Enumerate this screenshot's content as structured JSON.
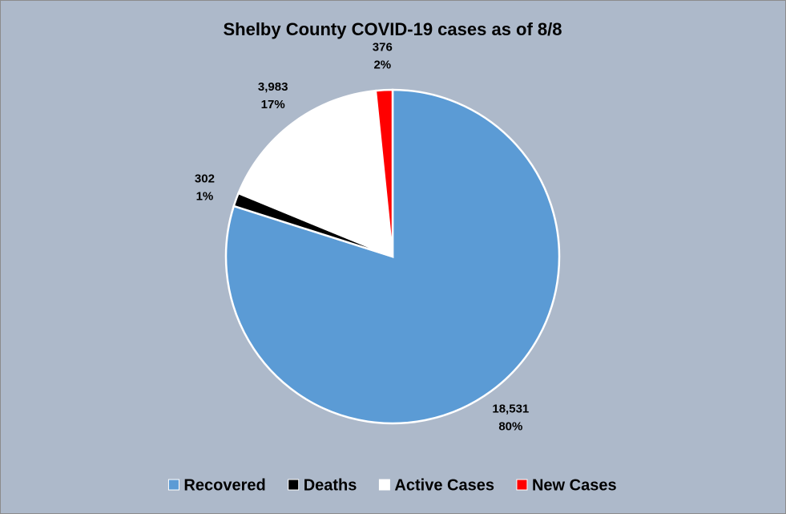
{
  "chart_data": {
    "type": "pie",
    "title": "Shelby County COVID-19 cases as of 8/8",
    "categories": [
      "Recovered",
      "Deaths",
      "Active Cases",
      "New Cases"
    ],
    "values": [
      18531,
      302,
      3983,
      376
    ],
    "value_labels": [
      "18,531",
      "302",
      "3,983",
      "376"
    ],
    "percent_labels": [
      "80%",
      "1%",
      "17%",
      "2%"
    ],
    "colors": [
      "#5b9bd5",
      "#000000",
      "#ffffff",
      "#ff0000"
    ],
    "legend": "bottom"
  }
}
